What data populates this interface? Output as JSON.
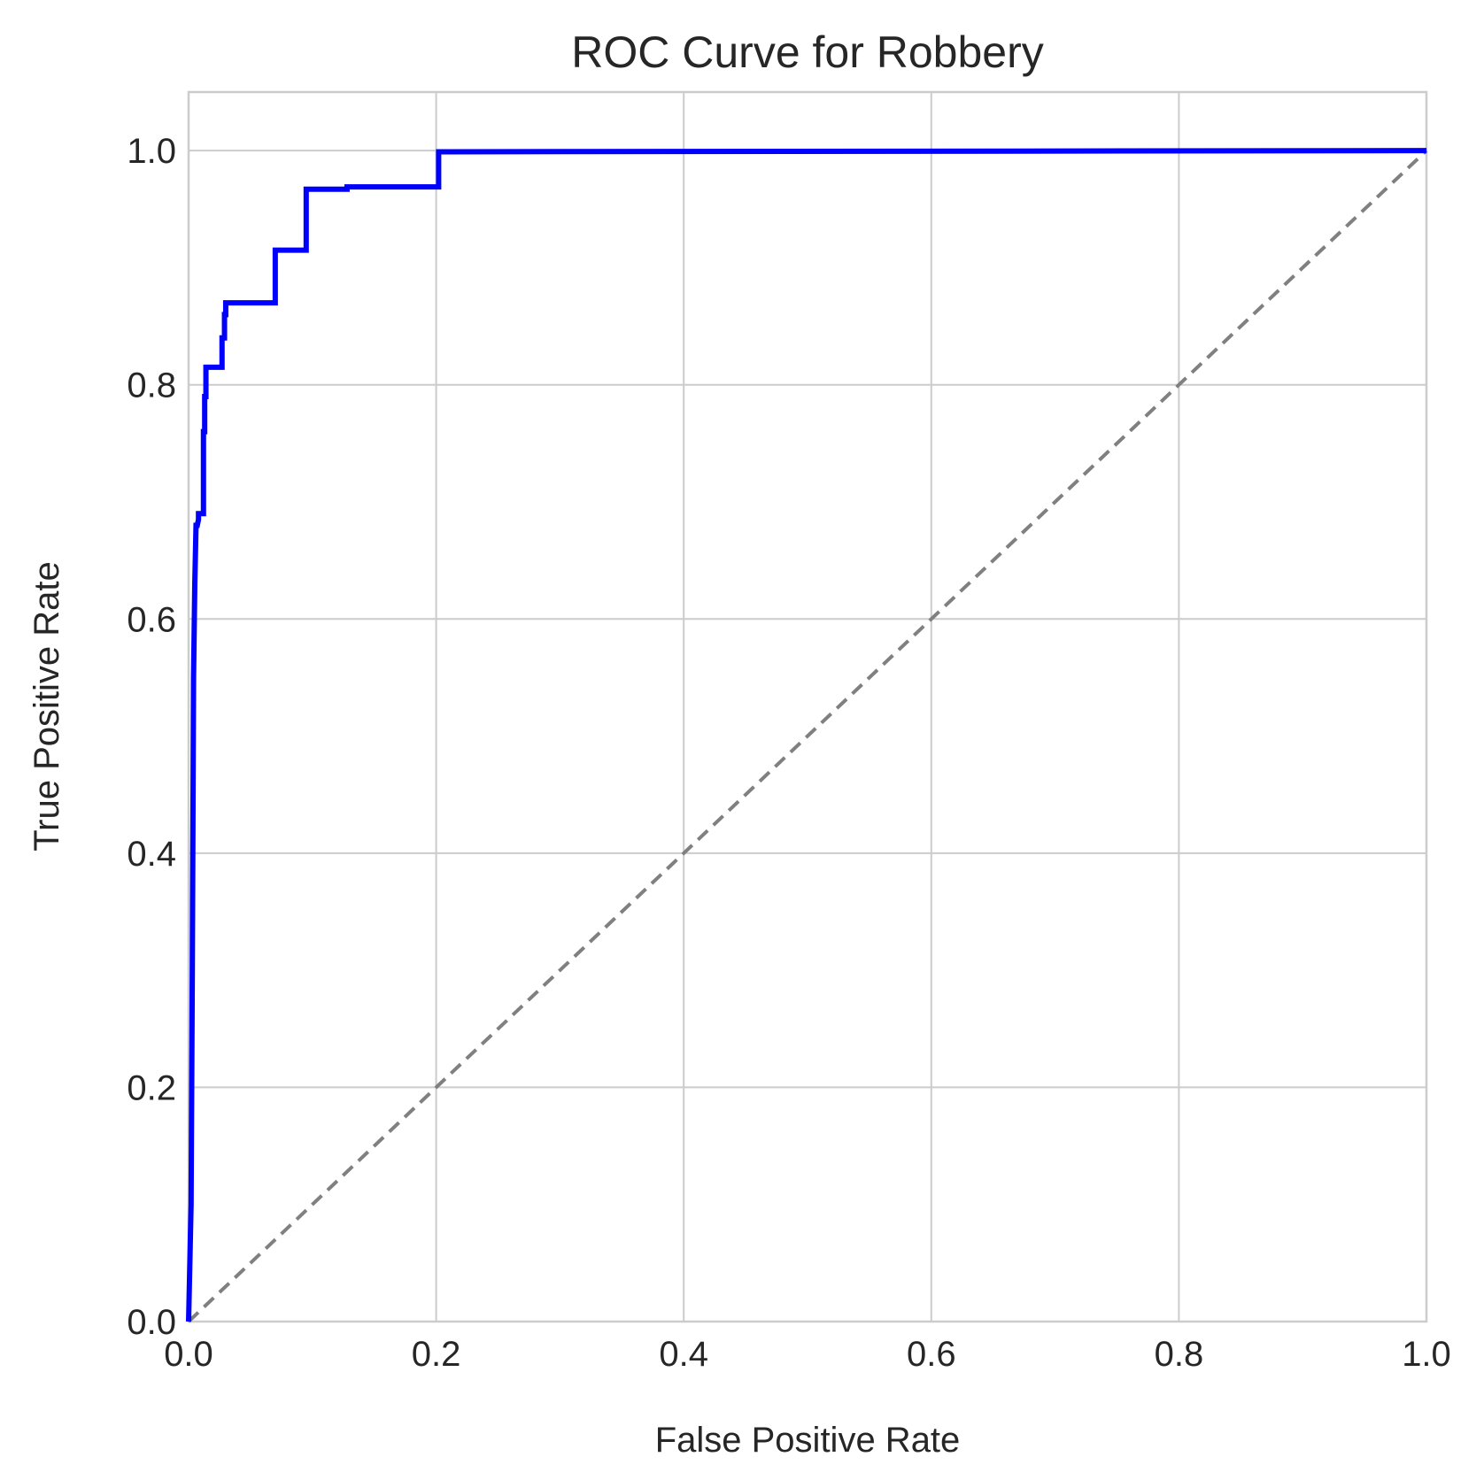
{
  "chart_data": {
    "type": "line",
    "title": "ROC Curve for Robbery",
    "xlabel": "False Positive Rate",
    "ylabel": "True Positive Rate",
    "xlim": [
      0.0,
      1.0
    ],
    "ylim": [
      0.0,
      1.05
    ],
    "x_ticks": [
      "0.0",
      "0.2",
      "0.4",
      "0.6",
      "0.8",
      "1.0"
    ],
    "y_ticks": [
      "0.0",
      "0.2",
      "0.4",
      "0.6",
      "0.8",
      "1.0"
    ],
    "grid": true,
    "series": [
      {
        "color": "#0000ff",
        "style": "solid",
        "x": [
          0.0,
          0.002,
          0.003,
          0.004,
          0.005,
          0.006,
          0.007,
          0.008,
          0.008,
          0.011,
          0.011,
          0.012,
          0.012,
          0.013,
          0.013,
          0.014,
          0.014,
          0.027,
          0.027,
          0.029,
          0.029,
          0.03,
          0.03,
          0.07,
          0.07,
          0.095,
          0.095,
          0.128,
          0.128,
          0.202,
          0.202,
          1.0
        ],
        "y": [
          0.0,
          0.1,
          0.3,
          0.55,
          0.63,
          0.68,
          0.68,
          0.685,
          0.69,
          0.69,
          0.69,
          0.69,
          0.76,
          0.76,
          0.79,
          0.79,
          0.815,
          0.815,
          0.84,
          0.84,
          0.86,
          0.86,
          0.87,
          0.87,
          0.915,
          0.915,
          0.967,
          0.967,
          0.969,
          0.969,
          0.999,
          1.0
        ]
      },
      {
        "color": "#808080",
        "style": "dashed",
        "x": [
          0.0,
          1.0
        ],
        "y": [
          0.0,
          1.0
        ]
      }
    ]
  }
}
